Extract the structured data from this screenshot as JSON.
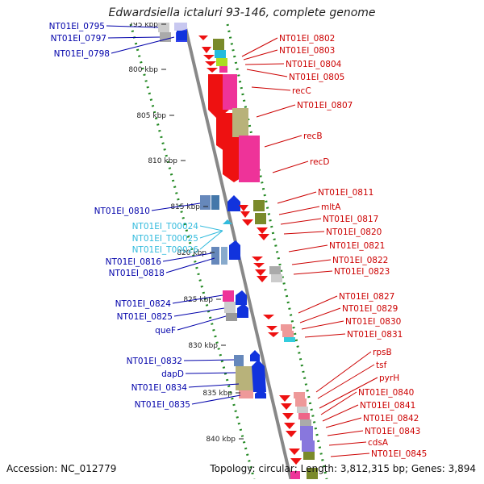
{
  "title": "Edwardsiella ictaluri 93-146, complete genome",
  "accession": "Accession: NC_012779",
  "summary": "Topology: circular; Length: 3,812,315 bp; Genes: 3,894",
  "colors": {
    "forward_label": "#cc0000",
    "reverse_label": "#0000aa",
    "trna_label": "#33bbdd",
    "ruler": "#228822",
    "backbone": "#888888"
  },
  "ruler_ticks": [
    "795 kbp",
    "800 kbp",
    "805 kbp",
    "810 kbp",
    "815 kbp",
    "820 kbp",
    "825 kbp",
    "830 kbp",
    "835 kbp",
    "840 kbp"
  ],
  "forward_labels": [
    "NT01EI_0802",
    "NT01EI_0803",
    "NT01EI_0804",
    "NT01EI_0805",
    "recC",
    "NT01EI_0807",
    "recB",
    "recD",
    "NT01EI_0811",
    "mltA",
    "NT01EI_0817",
    "NT01EI_0820",
    "NT01EI_0821",
    "NT01EI_0822",
    "NT01EI_0823",
    "NT01EI_0827",
    "NT01EI_0829",
    "NT01EI_0830",
    "NT01EI_0831",
    "rpsB",
    "tsf",
    "pyrH",
    "NT01EI_0840",
    "NT01EI_0841",
    "NT01EI_0842",
    "NT01EI_0843",
    "cdsA",
    "NT01EI_0845"
  ],
  "reverse_labels": [
    "NT01EI_0795",
    "NT01EI_0797",
    "NT01EI_0798",
    "NT01EI_0810",
    "NT01EI_0816",
    "NT01EI_0818",
    "NT01EI_0824",
    "NT01EI_0825",
    "queF",
    "NT01EI_0832",
    "dapD",
    "NT01EI_0834",
    "NT01EI_0835"
  ],
  "trna_labels": [
    "NT01EI_T00024",
    "NT01EI_T00025",
    "NT01EI_T00026"
  ]
}
